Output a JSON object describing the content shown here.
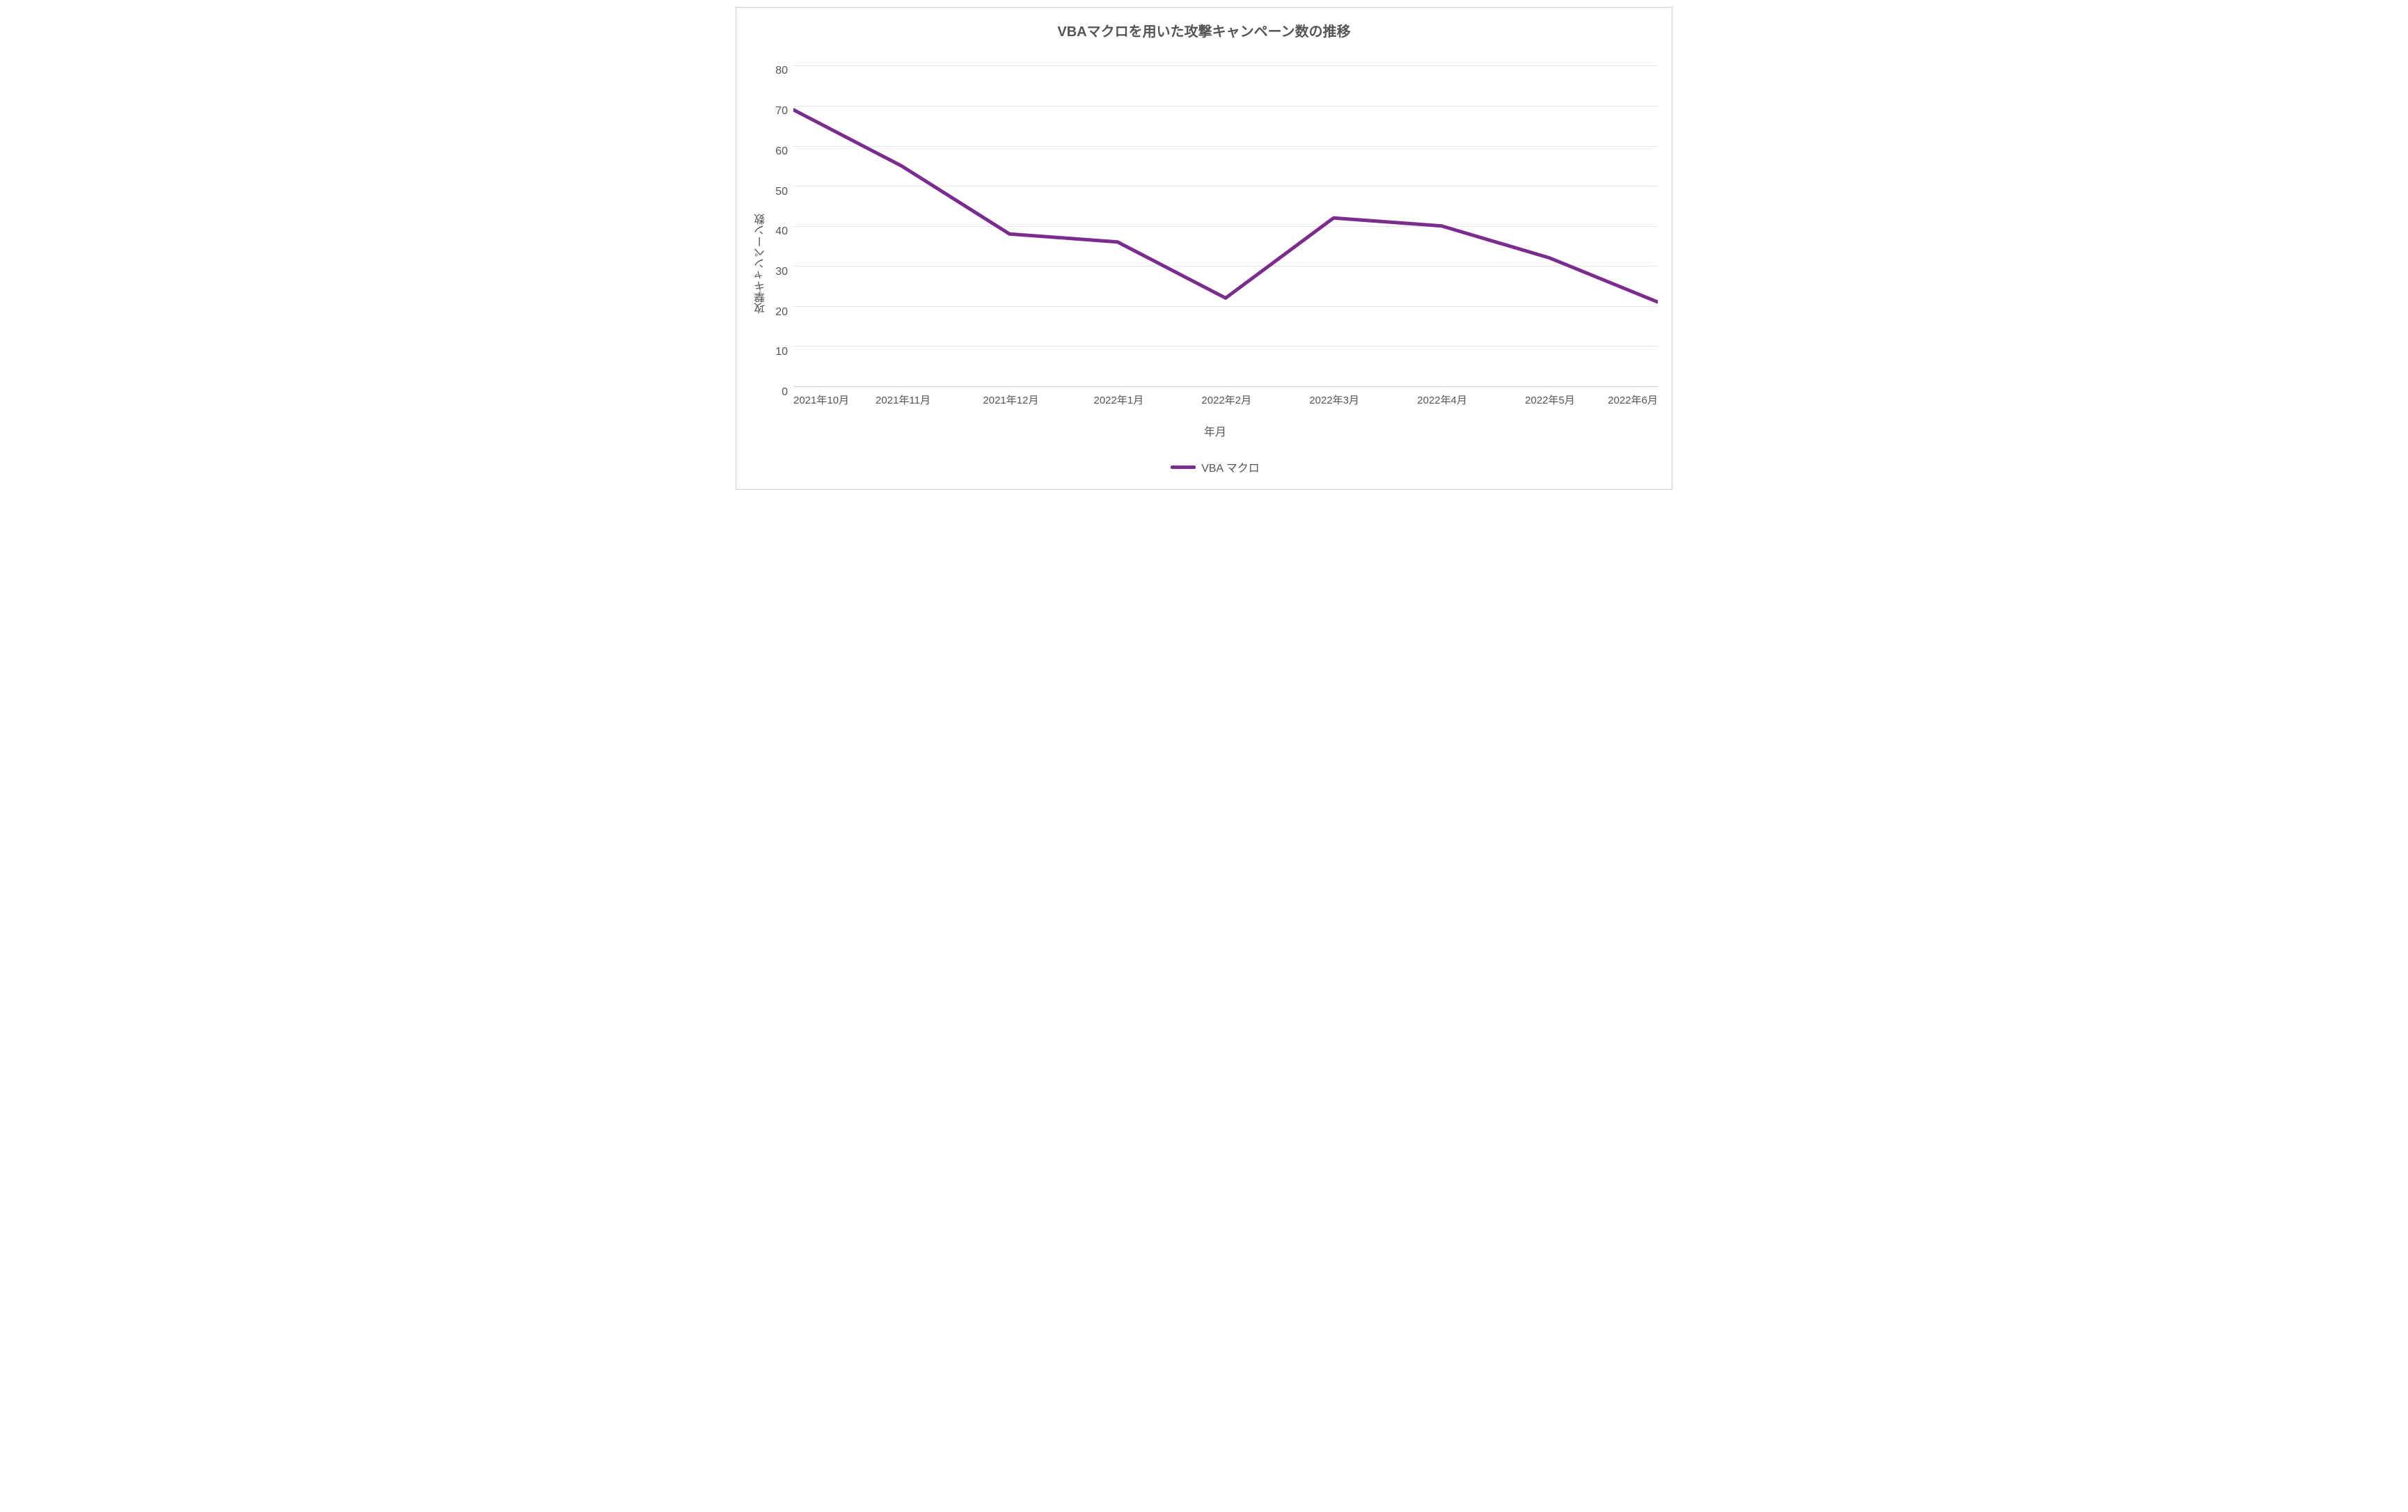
{
  "chart": {
    "type": "line",
    "title": "VBAマクロを用いた攻撃キャンペーン数の推移",
    "title_fontsize": 20,
    "title_color": "#555555",
    "background_color": "#ffffff",
    "border_color": "#d0d0d0",
    "grid_color": "#e5e5e5",
    "x_axis": {
      "title": "年月",
      "categories": [
        "2021年10月",
        "2021年11月",
        "2021年12月",
        "2022年1月",
        "2022年2月",
        "2022年3月",
        "2022年4月",
        "2022年5月",
        "2022年6月"
      ],
      "label_fontsize": 15,
      "label_color": "#555555",
      "title_fontsize": 16
    },
    "y_axis": {
      "title": "攻撃キャンペーン数",
      "min": 0,
      "max": 80,
      "tick_step": 10,
      "ticks": [
        0,
        10,
        20,
        30,
        40,
        50,
        60,
        70,
        80
      ],
      "label_fontsize": 16,
      "label_color": "#555555",
      "title_fontsize": 16,
      "extra_top_padding_fraction": 0.04
    },
    "series": [
      {
        "name": "VBA マクロ",
        "color": "#7b2d8e",
        "line_width": 5,
        "values": [
          69,
          55,
          38,
          36,
          22,
          42,
          40,
          32,
          21
        ]
      }
    ],
    "legend": {
      "position": "bottom",
      "label_fontsize": 16,
      "swatch_width": 36,
      "swatch_height": 5
    }
  }
}
